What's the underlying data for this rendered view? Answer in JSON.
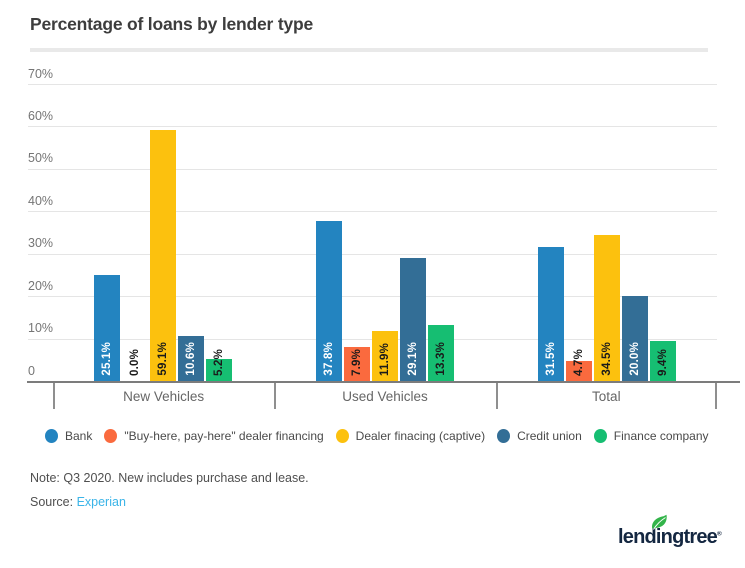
{
  "title": "Percentage of loans by lender type",
  "chart_data": {
    "type": "bar",
    "title": "Percentage of loans by lender type",
    "categories": [
      "New Vehicles",
      "Used Vehicles",
      "Total"
    ],
    "series": [
      {
        "name": "Bank",
        "color": "#2384c0",
        "label_color": "#ffffff",
        "values": [
          25.1,
          37.8,
          31.5
        ]
      },
      {
        "name": "\"Buy-here, pay-here\" dealer financing",
        "color": "#fa6a3e",
        "label_color": "#1a1a1a",
        "values": [
          0.0,
          7.9,
          4.7
        ]
      },
      {
        "name": "Dealer finacing (captive)",
        "color": "#fcc10e",
        "label_color": "#1a1a1a",
        "values": [
          59.1,
          11.9,
          34.5
        ]
      },
      {
        "name": "Credit union",
        "color": "#336e96",
        "label_color": "#ffffff",
        "values": [
          10.6,
          29.1,
          20.0
        ]
      },
      {
        "name": "Finance company",
        "color": "#16be72",
        "label_color": "#1a1a1a",
        "values": [
          5.2,
          13.3,
          9.4
        ]
      }
    ],
    "ylim": [
      0,
      70
    ],
    "ytick_step": 10,
    "ytick_suffix": "%",
    "zero_tick_label": "0",
    "value_label_suffix": "%",
    "grid": true,
    "legend_position": "bottom"
  },
  "legend": {
    "items": [
      {
        "label": "Bank",
        "color": "#2384c0"
      },
      {
        "label": "\"Buy-here, pay-here\" dealer financing",
        "color": "#fa6a3e"
      },
      {
        "label": "Dealer finacing (captive)",
        "color": "#fcc10e"
      },
      {
        "label": "Credit union",
        "color": "#336e96"
      },
      {
        "label": "Finance company",
        "color": "#16be72"
      }
    ]
  },
  "note": "Note: Q3 2020. New includes purchase and lease.",
  "source": {
    "prefix": "Source: ",
    "link": "Experian",
    "link_color": "#3ab4e8"
  },
  "logo": {
    "text": "lendingtree",
    "registered": "®",
    "color": "#142741",
    "leaf_color": "#33b44a"
  }
}
